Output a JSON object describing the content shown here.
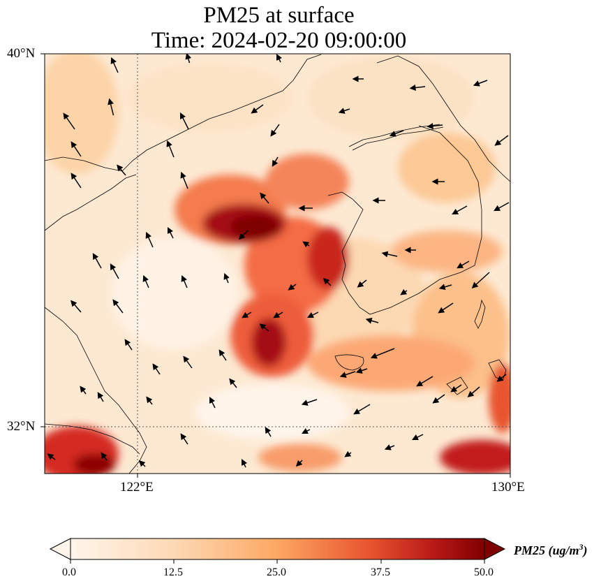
{
  "title": {
    "line1": "PM25 at surface",
    "line2": "Time: 2024-02-20 09:00:00"
  },
  "map": {
    "lat_labels": [
      "40°N",
      "32°N"
    ],
    "lon_labels": [
      "122°E",
      "130°E"
    ],
    "extent": {
      "lon_min": 120,
      "lon_max": 130,
      "lat_min": 31,
      "lat_max": 40
    },
    "gridlines": {
      "lons": [
        122
      ],
      "lats": [
        32
      ],
      "style": "dotted"
    },
    "field": "PM25",
    "wind_vectors": "shown"
  },
  "colorbar": {
    "label": "PM25 (ug/m",
    "label_sup": "3",
    "label_close": ")",
    "ticks": [
      "0.0",
      "12.5",
      "25.0",
      "37.5",
      "50.0"
    ],
    "min": 0,
    "max": 50,
    "extend": "both",
    "colormap": [
      "#fff5eb",
      "#fdd9b4",
      "#fda762",
      "#f0643a",
      "#c2261e",
      "#8b0000",
      "#7f0000"
    ]
  }
}
